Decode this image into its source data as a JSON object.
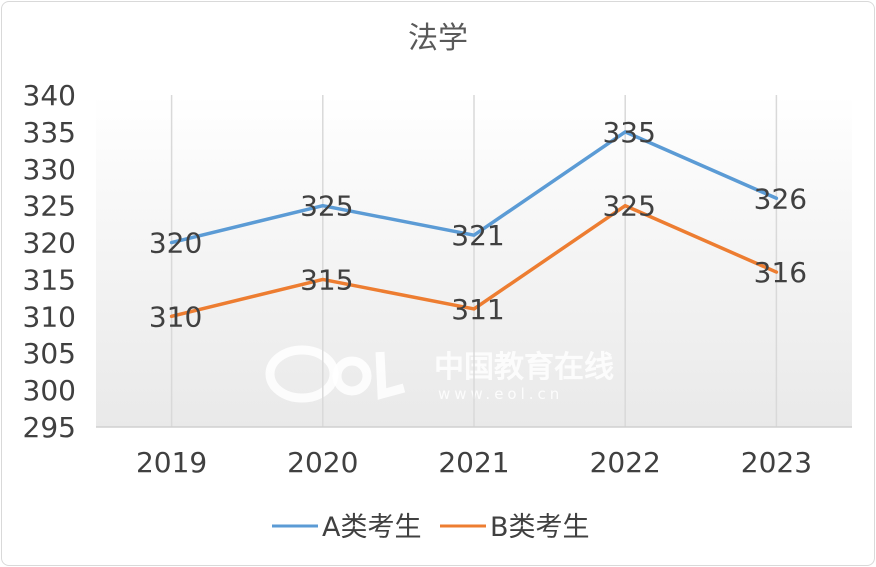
{
  "chart_data": {
    "type": "line",
    "title": "法学",
    "categories": [
      "2019",
      "2020",
      "2021",
      "2022",
      "2023"
    ],
    "series": [
      {
        "name": "A类考生",
        "color": "#5b9bd5",
        "values": [
          320,
          325,
          321,
          335,
          326
        ]
      },
      {
        "name": "B类考生",
        "color": "#ed7d31",
        "values": [
          310,
          315,
          311,
          325,
          316
        ]
      }
    ],
    "ylim": [
      295,
      340
    ],
    "yticks": [
      "295",
      "300",
      "305",
      "310",
      "315",
      "320",
      "325",
      "330",
      "335",
      "340"
    ],
    "xlabel": "",
    "ylabel": "",
    "grid": "vertical",
    "legend": "bottom"
  },
  "watermark": {
    "logo_text": "eol",
    "name": "中国教育在线",
    "url": "www.eol.cn"
  }
}
